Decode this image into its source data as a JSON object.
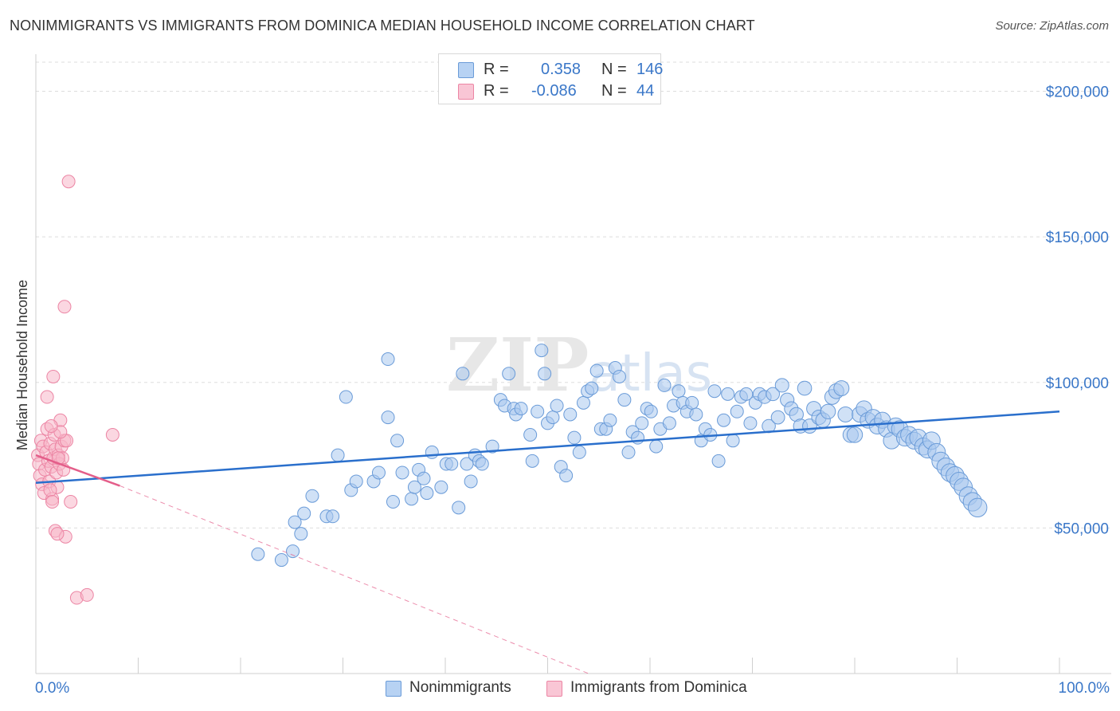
{
  "title": "NONIMMIGRANTS VS IMMIGRANTS FROM DOMINICA MEDIAN HOUSEHOLD INCOME CORRELATION CHART",
  "source": "Source: ZipAtlas.com",
  "watermark": "ZIPatlas",
  "legend": {
    "rows": [
      {
        "r_label": "R =",
        "r_value": "0.358",
        "n_label": "N =",
        "n_value": "146"
      },
      {
        "r_label": "R =",
        "r_value": "-0.086",
        "n_label": "N =",
        "n_value": "44"
      }
    ]
  },
  "bottom_legend": {
    "nonimmigrants": "Nonimmigrants",
    "immigrants": "Immigrants from Dominica"
  },
  "colors": {
    "blue_fill": "#a9c8ef",
    "blue_stroke": "#6a9bd8",
    "blue_line": "#2a6fcc",
    "pink_fill": "#f7b6c9",
    "pink_stroke": "#ec85a4",
    "pink_line": "#e45e8a",
    "axis_label": "#3a77c8",
    "grid": "#dddddd"
  },
  "chart_data": {
    "type": "scatter",
    "title": "NONIMMIGRANTS VS IMMIGRANTS FROM DOMINICA MEDIAN HOUSEHOLD INCOME CORRELATION CHART",
    "xlabel": "",
    "ylabel": "Median Household Income",
    "xlim": [
      0,
      100
    ],
    "ylim": [
      0,
      210000
    ],
    "x_tick_labels": [
      "0.0%",
      "100.0%"
    ],
    "y_ticks": [
      50000,
      100000,
      150000,
      200000
    ],
    "y_tick_labels": [
      "$50,000",
      "$100,000",
      "$150,000",
      "$200,000"
    ],
    "grid": true,
    "series": [
      {
        "name": "Nonimmigrants",
        "color": "#a9c8ef",
        "trend": {
          "x": [
            0,
            100
          ],
          "y": [
            65500,
            90000
          ],
          "dashed_extension": false
        },
        "points": [
          [
            21.7,
            41000
          ],
          [
            24.0,
            39000
          ],
          [
            25.1,
            42000
          ],
          [
            25.3,
            52000
          ],
          [
            25.9,
            48000
          ],
          [
            26.2,
            55000
          ],
          [
            27.0,
            61000
          ],
          [
            28.4,
            54000
          ],
          [
            29.0,
            54000
          ],
          [
            29.5,
            75000
          ],
          [
            30.3,
            95000
          ],
          [
            30.8,
            63000
          ],
          [
            31.3,
            66000
          ],
          [
            33.0,
            66000
          ],
          [
            33.5,
            69000
          ],
          [
            34.4,
            108000
          ],
          [
            34.4,
            88000
          ],
          [
            34.9,
            59000
          ],
          [
            35.3,
            80000
          ],
          [
            35.8,
            69000
          ],
          [
            36.7,
            60000
          ],
          [
            37.0,
            64000
          ],
          [
            37.4,
            70000
          ],
          [
            37.9,
            67000
          ],
          [
            38.2,
            62000
          ],
          [
            38.7,
            76000
          ],
          [
            39.6,
            64000
          ],
          [
            40.1,
            72000
          ],
          [
            40.6,
            72000
          ],
          [
            41.3,
            57000
          ],
          [
            41.7,
            103000
          ],
          [
            42.1,
            72000
          ],
          [
            42.5,
            66000
          ],
          [
            42.9,
            75000
          ],
          [
            43.3,
            73000
          ],
          [
            43.6,
            72000
          ],
          [
            44.6,
            78000
          ],
          [
            45.4,
            94000
          ],
          [
            45.8,
            92000
          ],
          [
            46.2,
            103000
          ],
          [
            46.7,
            91000
          ],
          [
            46.9,
            89000
          ],
          [
            47.4,
            91000
          ],
          [
            48.3,
            82000
          ],
          [
            48.5,
            73000
          ],
          [
            49.0,
            90000
          ],
          [
            49.4,
            111000
          ],
          [
            49.7,
            103000
          ],
          [
            50.0,
            86000
          ],
          [
            50.5,
            88000
          ],
          [
            50.9,
            92000
          ],
          [
            51.3,
            71000
          ],
          [
            51.8,
            68000
          ],
          [
            52.2,
            89000
          ],
          [
            52.6,
            81000
          ],
          [
            53.1,
            76000
          ],
          [
            53.5,
            93000
          ],
          [
            53.9,
            97000
          ],
          [
            54.3,
            98000
          ],
          [
            54.8,
            104000
          ],
          [
            55.2,
            84000
          ],
          [
            55.7,
            84000
          ],
          [
            56.1,
            87000
          ],
          [
            56.6,
            105000
          ],
          [
            57.0,
            102000
          ],
          [
            57.5,
            94000
          ],
          [
            57.9,
            76000
          ],
          [
            58.3,
            83000
          ],
          [
            58.8,
            81000
          ],
          [
            59.2,
            86000
          ],
          [
            59.7,
            91000
          ],
          [
            60.1,
            90000
          ],
          [
            60.6,
            78000
          ],
          [
            61.0,
            84000
          ],
          [
            61.4,
            99000
          ],
          [
            61.9,
            86000
          ],
          [
            62.3,
            92000
          ],
          [
            62.8,
            97000
          ],
          [
            63.2,
            93000
          ],
          [
            63.6,
            90000
          ],
          [
            64.1,
            93000
          ],
          [
            64.5,
            89000
          ],
          [
            65.0,
            80000
          ],
          [
            65.4,
            84000
          ],
          [
            65.9,
            82000
          ],
          [
            66.3,
            97000
          ],
          [
            66.7,
            73000
          ],
          [
            67.2,
            87000
          ],
          [
            67.6,
            96000
          ],
          [
            68.1,
            80000
          ],
          [
            68.5,
            90000
          ],
          [
            68.9,
            95000
          ],
          [
            69.4,
            96000
          ],
          [
            69.8,
            86000
          ],
          [
            70.3,
            93000
          ],
          [
            70.7,
            96000
          ],
          [
            71.2,
            95000
          ],
          [
            71.6,
            85000
          ],
          [
            72.0,
            96000
          ],
          [
            72.5,
            88000
          ],
          [
            72.9,
            99000
          ],
          [
            73.4,
            94000
          ],
          [
            73.8,
            91000
          ],
          [
            74.3,
            89000
          ],
          [
            74.7,
            85000
          ],
          [
            75.1,
            98000
          ],
          [
            75.6,
            85000
          ],
          [
            76.0,
            91000
          ],
          [
            76.5,
            88000
          ],
          [
            76.9,
            87000
          ],
          [
            77.4,
            90000
          ],
          [
            77.8,
            95000
          ],
          [
            78.2,
            97000
          ],
          [
            78.7,
            98000
          ],
          [
            79.1,
            89000
          ],
          [
            79.6,
            82000
          ],
          [
            80.0,
            82000
          ],
          [
            80.5,
            89000
          ],
          [
            80.9,
            91000
          ],
          [
            81.3,
            87000
          ],
          [
            81.8,
            88000
          ],
          [
            82.2,
            85000
          ],
          [
            82.7,
            87000
          ],
          [
            83.1,
            84000
          ],
          [
            83.6,
            80000
          ],
          [
            84.0,
            85000
          ],
          [
            84.4,
            84000
          ],
          [
            84.9,
            81000
          ],
          [
            85.3,
            82000
          ],
          [
            85.8,
            80000
          ],
          [
            86.2,
            81000
          ],
          [
            86.7,
            78000
          ],
          [
            87.1,
            77000
          ],
          [
            87.5,
            80000
          ],
          [
            88.0,
            76000
          ],
          [
            88.4,
            73000
          ],
          [
            88.9,
            71000
          ],
          [
            89.3,
            69000
          ],
          [
            89.8,
            68000
          ],
          [
            90.2,
            66000
          ],
          [
            90.6,
            64000
          ],
          [
            91.1,
            61000
          ],
          [
            91.5,
            59000
          ],
          [
            92.0,
            57000
          ]
        ]
      },
      {
        "name": "Immigrants from Dominica",
        "color": "#f7b6c9",
        "trend": {
          "x": [
            0,
            8.2
          ],
          "y": [
            75000,
            64500
          ],
          "dashed_extension": {
            "x": [
              8.2,
              54
            ],
            "y": [
              64500,
              0
            ]
          }
        },
        "points": [
          [
            0.2,
            75000
          ],
          [
            0.3,
            72000
          ],
          [
            0.4,
            68000
          ],
          [
            0.5,
            80000
          ],
          [
            0.6,
            65000
          ],
          [
            0.7,
            78000
          ],
          [
            0.8,
            62000
          ],
          [
            0.9,
            70000
          ],
          [
            1.0,
            76000
          ],
          [
            1.1,
            84000
          ],
          [
            1.2,
            73000
          ],
          [
            1.3,
            66000
          ],
          [
            1.4,
            79000
          ],
          [
            1.5,
            71000
          ],
          [
            1.6,
            60000
          ],
          [
            1.7,
            74000
          ],
          [
            1.8,
            82000
          ],
          [
            1.9,
            77000
          ],
          [
            2.0,
            69000
          ],
          [
            2.1,
            64000
          ],
          [
            2.2,
            75000
          ],
          [
            2.3,
            72000
          ],
          [
            2.4,
            87000
          ],
          [
            2.5,
            78000
          ],
          [
            2.6,
            74000
          ],
          [
            2.7,
            70000
          ],
          [
            2.8,
            80000
          ],
          [
            1.4,
            63000
          ],
          [
            1.6,
            59000
          ],
          [
            1.1,
            95000
          ],
          [
            1.7,
            102000
          ],
          [
            3.0,
            80000
          ],
          [
            3.4,
            59000
          ],
          [
            2.4,
            83000
          ],
          [
            1.9,
            49000
          ],
          [
            2.9,
            47000
          ],
          [
            2.1,
            48000
          ],
          [
            4.0,
            26000
          ],
          [
            5.0,
            27000
          ],
          [
            2.8,
            126000
          ],
          [
            3.2,
            169000
          ],
          [
            7.5,
            82000
          ],
          [
            1.5,
            85000
          ],
          [
            2.2,
            74000
          ]
        ]
      }
    ],
    "legend_position": "top-center",
    "bottom_legend": [
      "Nonimmigrants",
      "Immigrants from Dominica"
    ]
  }
}
